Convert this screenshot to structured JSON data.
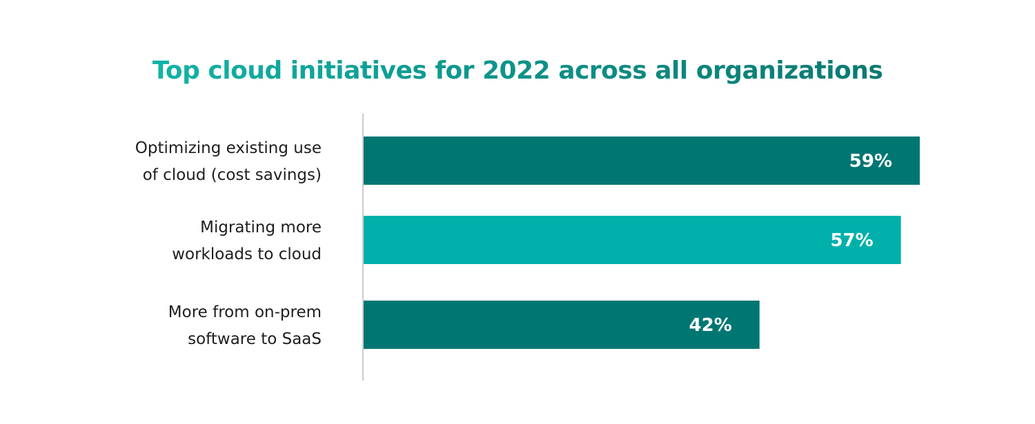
{
  "chart_data": {
    "type": "bar",
    "orientation": "horizontal",
    "title": "Top cloud initiatives for 2022 across all organizations",
    "categories": [
      [
        "Optimizing existing use",
        "of cloud (cost savings)"
      ],
      [
        "Migrating more",
        "workloads to cloud"
      ],
      [
        "More from on-prem",
        "software to SaaS"
      ]
    ],
    "values": [
      59,
      57,
      42
    ],
    "value_labels": [
      "59%",
      "57%",
      "42%"
    ],
    "bar_colors": [
      "#007672",
      "#00b0aa",
      "#007672"
    ],
    "xlim": [
      0,
      59
    ],
    "grid": false,
    "legend": "none"
  },
  "colors": {
    "title_start": "#12b3a7",
    "title_end": "#0a7a72",
    "axis_line": "#cccccc",
    "label_text": "#1e1e1e",
    "value_text": "#ffffff"
  }
}
